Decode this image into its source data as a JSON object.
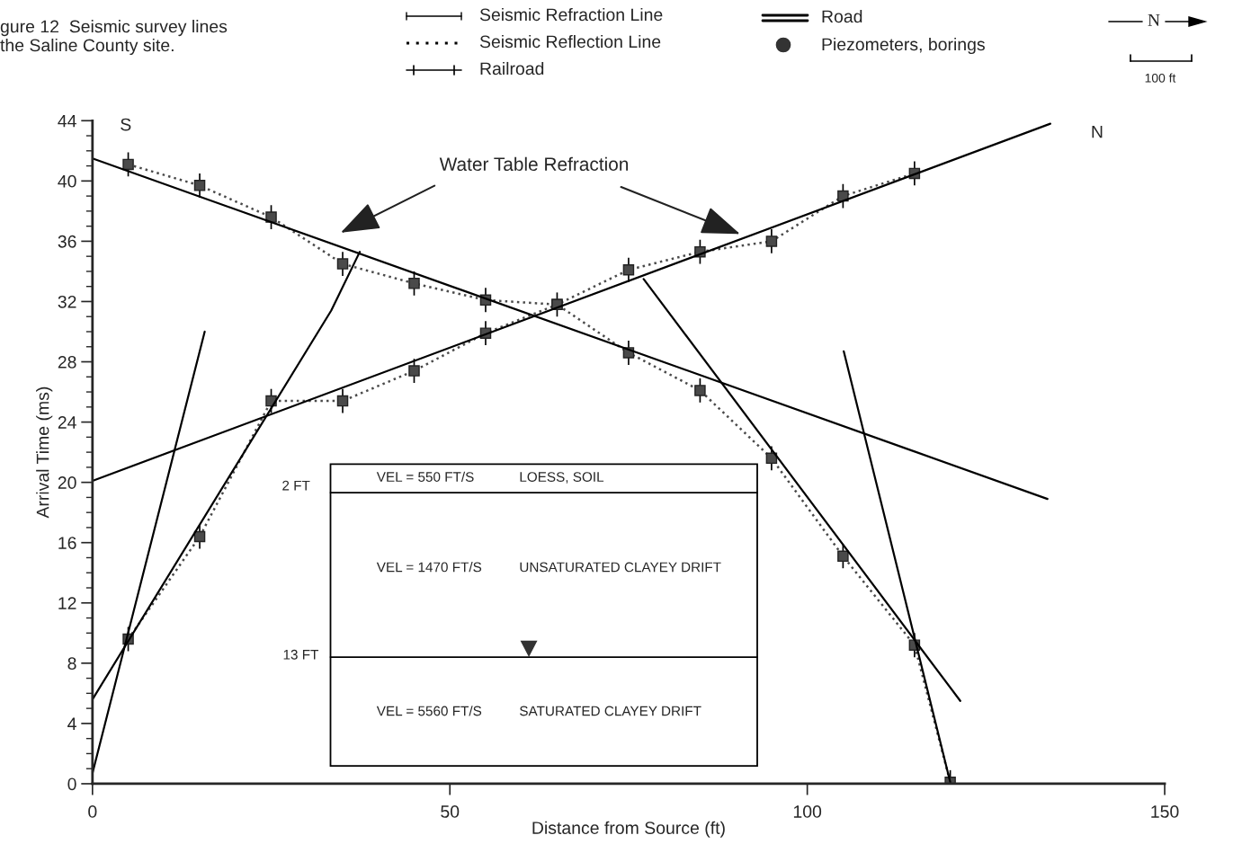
{
  "chart_data": {
    "type": "line",
    "title": "gure 12  Seismic survey lines\nthe Saline County site.",
    "xlabel": "Distance from Source (ft)",
    "ylabel": "Arrival Time (ms)",
    "xlim": [
      0,
      150
    ],
    "xticks": [
      0,
      50,
      100,
      150
    ],
    "ylim": [
      0,
      44
    ],
    "yticks": [
      0,
      4,
      8,
      12,
      16,
      20,
      24,
      28,
      32,
      36,
      40,
      44
    ],
    "grid": false,
    "legend": false,
    "series": [
      {
        "color": "#4a4a4a",
        "line_style": "dotted",
        "marker": "square",
        "x": [
          5,
          15,
          25,
          35,
          45,
          55,
          65,
          75,
          85,
          95,
          105,
          115
        ],
        "values": [
          9.6,
          16.4,
          25.4,
          25.4,
          27.4,
          29.9,
          31.8,
          34.1,
          35.3,
          36.0,
          39.0,
          40.5
        ],
        "errors": [
          0.8,
          0.8,
          0.8,
          0.8,
          0.8,
          0.8,
          0.8,
          0.8,
          0.8,
          0.8,
          0.8,
          0.8
        ]
      },
      {
        "color": "#4a4a4a",
        "line_style": "dotted",
        "marker": "square",
        "x": [
          5,
          15,
          25,
          35,
          45,
          55,
          65,
          75,
          85,
          95,
          105,
          115,
          120
        ],
        "values": [
          41.1,
          39.7,
          37.6,
          34.5,
          33.2,
          32.1,
          31.8,
          28.6,
          26.1,
          21.6,
          15.1,
          9.2,
          0.1
        ],
        "errors": [
          0.8,
          0.8,
          0.8,
          0.8,
          0.8,
          0.8,
          null,
          0.8,
          0.8,
          0.8,
          0.8,
          0.8,
          0.8
        ]
      },
      {
        "color": "#000000",
        "line_style": "solid",
        "x": [
          0,
          133.6
        ],
        "values": [
          41.5,
          18.9
        ]
      },
      {
        "color": "#000000",
        "line_style": "solid",
        "x": [
          0,
          134
        ],
        "values": [
          20.1,
          43.8
        ]
      },
      {
        "color": "#000000",
        "line_style": "solid",
        "x": [
          0,
          15.7
        ],
        "values": [
          0.7,
          30.0
        ]
      },
      {
        "color": "#000000",
        "line_style": "solid",
        "x": [
          0,
          33.4,
          37.4
        ],
        "values": [
          5.6,
          31.4,
          35.3
        ]
      },
      {
        "color": "#000000",
        "line_style": "solid",
        "x": [
          77.1,
          121.4
        ],
        "values": [
          33.5,
          5.5
        ]
      },
      {
        "color": "#000000",
        "line_style": "solid",
        "x": [
          105.1,
          120
        ],
        "values": [
          28.7,
          0.1
        ]
      }
    ],
    "annotations": [
      "Water Table Refraction",
      "S",
      "N",
      "2 FT",
      "VEL = 550 FT/S",
      "LOESS, SOIL",
      "VEL = 1470 FT/S",
      "UNSATURATED CLAYEY DRIFT",
      "13 FT",
      "VEL = 5560 FT/S",
      "SATURATED CLAYEY DRIFT",
      "Seismic Refraction Line",
      "Seismic Reflection Line",
      "Railroad",
      "Road",
      "Piezometers, borings",
      "N",
      "100 ft"
    ]
  }
}
